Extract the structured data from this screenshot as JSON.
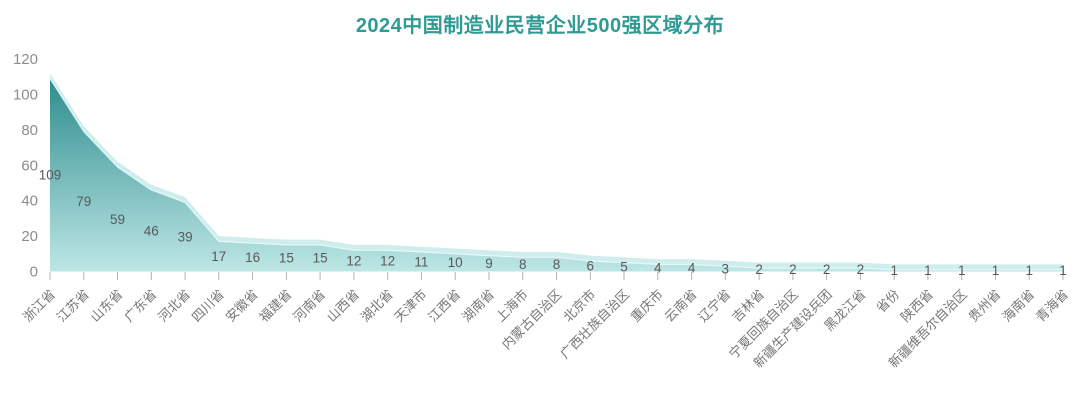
{
  "chart_data": {
    "type": "area",
    "title": "2024中国制造业民营企业500强区域分布",
    "categories": [
      "浙江省",
      "江苏省",
      "山东省",
      "广东省",
      "河北省",
      "四川省",
      "安徽省",
      "福建省",
      "河南省",
      "山西省",
      "湖北省",
      "天津市",
      "江西省",
      "湖南省",
      "上海市",
      "内蒙古自治区",
      "北京市",
      "广西壮族自治区",
      "重庆市",
      "云南省",
      "辽宁省",
      "吉林省",
      "宁夏回族自治区",
      "新疆生产建设兵团",
      "黑龙江省",
      "省份",
      "陕西省",
      "新疆维吾尔自治区",
      "贵州省",
      "海南省",
      "青海省"
    ],
    "values": [
      109,
      79,
      59,
      46,
      39,
      17,
      16,
      15,
      15,
      12,
      12,
      11,
      10,
      9,
      8,
      8,
      6,
      5,
      4,
      4,
      3,
      2,
      2,
      2,
      2,
      1,
      1,
      1,
      1,
      1,
      1
    ],
    "xlabel": "",
    "ylabel": "",
    "ylim": [
      0,
      120
    ],
    "y_ticks": [
      0,
      20,
      40,
      60,
      80,
      100,
      120
    ],
    "grid": false,
    "legend": "none",
    "data_labels_visible": true,
    "colors": {
      "title": "#2f9a94",
      "area_gradient_top": "#2e8d8d",
      "area_gradient_bottom": "#bde6e6",
      "area_edge_highlight": "#eef9f9",
      "echo_band": "#cfeded",
      "y_axis_label": "#8c8c8c",
      "category_label": "#767676",
      "data_label": "#595959",
      "tick_mark": "#b3b3b3"
    }
  }
}
